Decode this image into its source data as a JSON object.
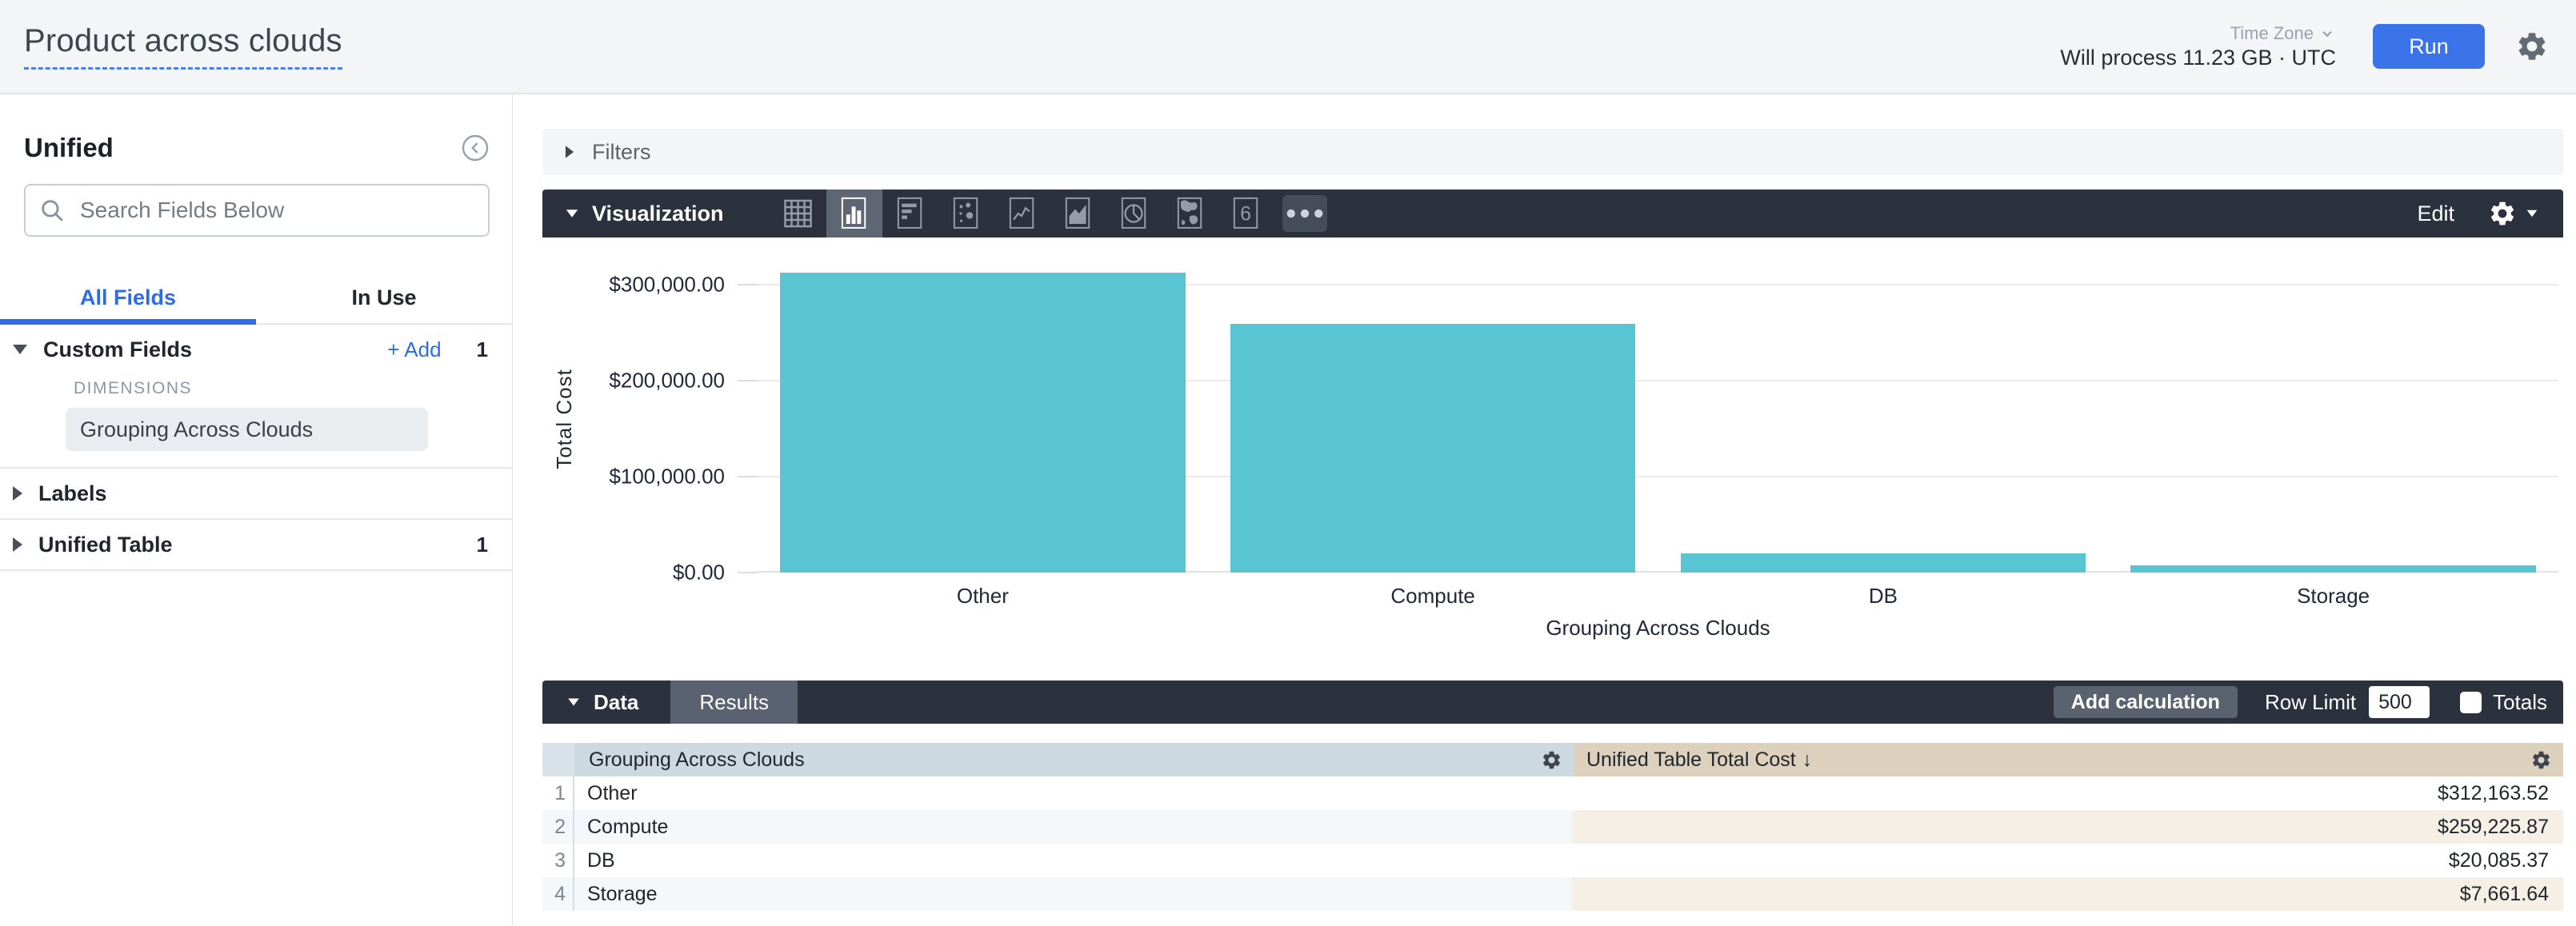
{
  "header": {
    "title": "Product across clouds",
    "process_text": "Will process 11.23 GB · UTC",
    "time_zone_label": "Time Zone",
    "run_label": "Run"
  },
  "sidebar": {
    "view_name": "Unified",
    "search_placeholder": "Search Fields Below",
    "tabs": [
      {
        "label": "All Fields",
        "active": true
      },
      {
        "label": "In Use",
        "active": false
      }
    ],
    "sections": [
      {
        "label": "Custom Fields",
        "expanded": true,
        "add_label": "+ Add",
        "count": "1",
        "group_label": "DIMENSIONS",
        "fields": [
          "Grouping Across Clouds"
        ]
      },
      {
        "label": "Labels",
        "expanded": false,
        "count": ""
      },
      {
        "label": "Unified Table",
        "expanded": false,
        "count": "1"
      }
    ]
  },
  "filters_bar": {
    "label": "Filters"
  },
  "viz_bar": {
    "label": "Visualization",
    "edit_label": "Edit",
    "icons": [
      {
        "name": "table-viz-icon",
        "selected": false
      },
      {
        "name": "column-chart-viz-icon",
        "selected": true
      },
      {
        "name": "bar-chart-viz-icon",
        "selected": false
      },
      {
        "name": "scatterplot-viz-icon",
        "selected": false
      },
      {
        "name": "line-chart-viz-icon",
        "selected": false
      },
      {
        "name": "area-chart-viz-icon",
        "selected": false
      },
      {
        "name": "pie-chart-viz-icon",
        "selected": false
      },
      {
        "name": "map-viz-icon",
        "selected": false
      },
      {
        "name": "single-value-viz-icon",
        "selected": false
      },
      {
        "name": "more-viz-options",
        "selected": false
      }
    ]
  },
  "chart_data": {
    "type": "bar",
    "categories": [
      "Other",
      "Compute",
      "DB",
      "Storage"
    ],
    "values": [
      312163.52,
      259225.87,
      20085.37,
      7661.64
    ],
    "title": "",
    "xlabel": "Grouping Across Clouds",
    "ylabel": "Total Cost",
    "ylim": [
      0,
      325000
    ],
    "yticks": [
      {
        "value": 0,
        "label": "$0.00"
      },
      {
        "value": 100000,
        "label": "$100,000.00"
      },
      {
        "value": 200000,
        "label": "$200,000.00"
      },
      {
        "value": 300000,
        "label": "$300,000.00"
      }
    ],
    "grid": true,
    "legend": "none",
    "series_color": "#59c5d3"
  },
  "data_bar": {
    "label": "Data",
    "results_label": "Results",
    "add_calculation_label": "Add calculation",
    "row_limit_label": "Row Limit",
    "row_limit_value": "500",
    "totals_label": "Totals"
  },
  "table": {
    "columns": [
      {
        "label": "Grouping Across Clouds"
      },
      {
        "label": "Unified Table Total Cost",
        "sort_arrow": "↓"
      }
    ],
    "rows": [
      {
        "n": "1",
        "dim": "Other",
        "val": "$312,163.52"
      },
      {
        "n": "2",
        "dim": "Compute",
        "val": "$259,225.87"
      },
      {
        "n": "3",
        "dim": "DB",
        "val": "$20,085.37"
      },
      {
        "n": "4",
        "dim": "Storage",
        "val": "$7,661.64"
      }
    ]
  },
  "colors": {
    "accent_blue": "#2c6ce6",
    "run_button_blue": "#3a74e8",
    "series_teal": "#59c5d3",
    "dark_bar": "#2b323e",
    "dimension_header": "#cdd9e1",
    "measure_header": "#ddd0bc"
  }
}
